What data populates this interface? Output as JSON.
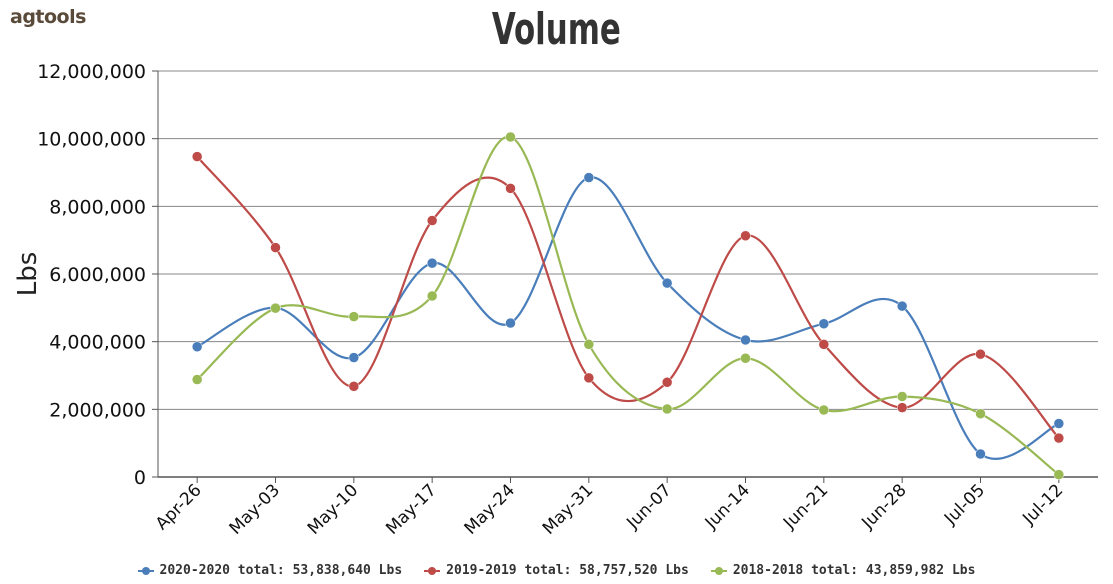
{
  "logo": "agtools",
  "chart_data": {
    "type": "line",
    "title": "Volume",
    "xlabel": "",
    "ylabel": "Lbs",
    "ylim": [
      0,
      12000000
    ],
    "y_ticks": [
      "0",
      "2,000,000",
      "4,000,000",
      "6,000,000",
      "8,000,000",
      "10,000,000",
      "12,000,000"
    ],
    "categories": [
      "Apr-26",
      "May-03",
      "May-10",
      "May-17",
      "May-24",
      "May-31",
      "Jun-07",
      "Jun-14",
      "Jun-21",
      "Jun-28",
      "Jul-05",
      "Jul-12"
    ],
    "grid": true,
    "legend_position": "bottom",
    "series": [
      {
        "name": "2020-2020 total: 53,838,640 Lbs",
        "color": "#4a7ebb",
        "values": [
          3850000,
          5000000,
          3530000,
          6320000,
          4550000,
          8850000,
          5730000,
          4050000,
          4530000,
          5050000,
          680000,
          1580000
        ]
      },
      {
        "name": "2019-2019 total: 58,757,520 Lbs",
        "color": "#be4b48",
        "values": [
          9470000,
          6780000,
          2680000,
          7580000,
          8530000,
          2930000,
          2800000,
          7130000,
          3920000,
          2050000,
          3630000,
          1150000
        ]
      },
      {
        "name": "2018-2018 total: 43,859,982 Lbs",
        "color": "#98b954",
        "values": [
          2880000,
          4990000,
          4740000,
          5350000,
          10050000,
          3920000,
          2010000,
          3510000,
          1980000,
          2380000,
          1870000,
          70000
        ]
      }
    ]
  }
}
